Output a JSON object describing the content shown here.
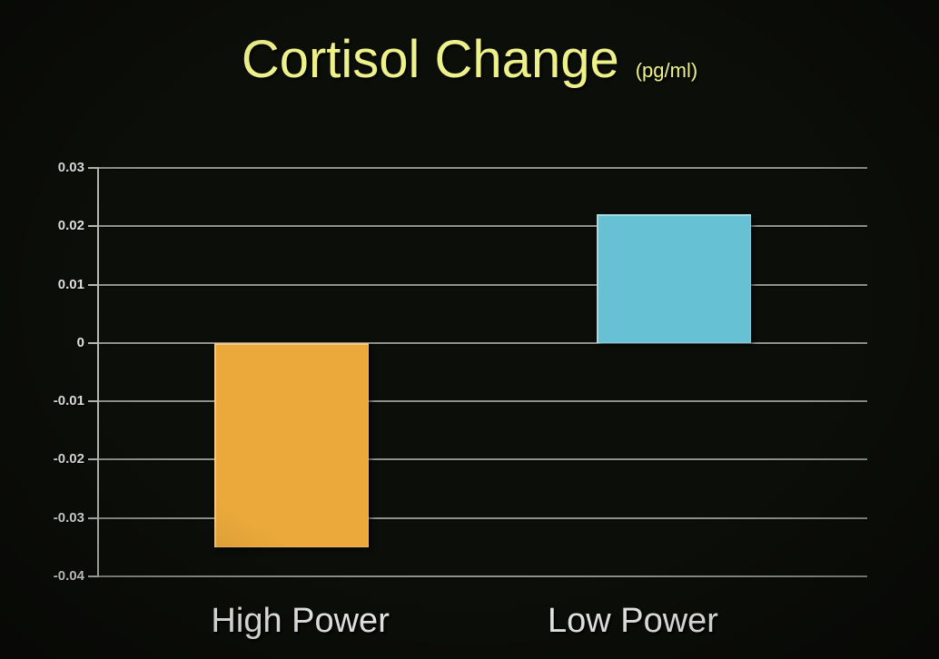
{
  "title": {
    "text": "Cortisol Change",
    "units": "(pg/ml)"
  },
  "colors": {
    "background": "#0c0e09",
    "title": "#eef189",
    "gridline": "#8e938c",
    "axis": "#b9bdb6",
    "tick_label": "#e9e9e9",
    "category_label": "#f4f4f4"
  },
  "chart_data": {
    "type": "bar",
    "title": "Cortisol Change",
    "units_label": "(pg/ml)",
    "categories": [
      "High Power",
      "Low Power"
    ],
    "values": [
      -0.035,
      0.022
    ],
    "bar_colors": [
      "#eba93b",
      "#66c1d4"
    ],
    "ylim": [
      -0.04,
      0.03
    ],
    "yticks": [
      0.03,
      0.02,
      0.01,
      0,
      -0.01,
      -0.02,
      -0.03,
      -0.04
    ],
    "ytick_labels": [
      "0.03",
      "0.02",
      "0.01",
      "0",
      "-0.01",
      "-0.02",
      "-0.03",
      "-0.04"
    ],
    "xlabel": "",
    "ylabel": "",
    "grid": true,
    "legend": false
  }
}
